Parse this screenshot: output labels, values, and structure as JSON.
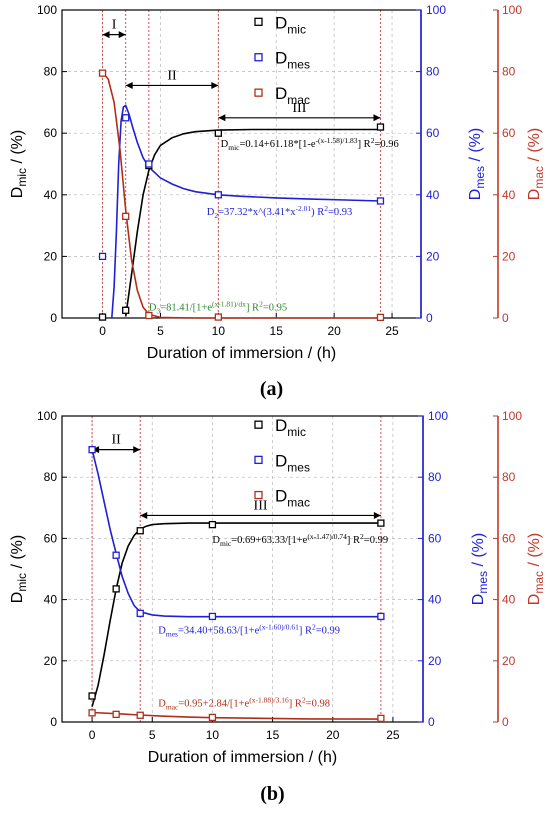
{
  "colors": {
    "mic": "#000000",
    "mes": "#1f1fd6",
    "mac": "#b02f1a",
    "mac_axis": "#c0392b",
    "mes_axis": "#1f1fd6",
    "eq_mac_a": "#2e8b2e",
    "grid": "#b8b8b8",
    "vline": "#d05050"
  },
  "labels": {
    "xlabel": "Duration of immersion / (h)",
    "y_mic": {
      "main": "D",
      "sub": "mic",
      "unit": " / (%)"
    },
    "y_mes": {
      "main": "D",
      "sub": "mes",
      "unit": " / (%)"
    },
    "y_mac": {
      "main": "D",
      "sub": "mac",
      "unit": " / (%)"
    },
    "legend": [
      {
        "key": "mic",
        "main": "D",
        "sub": "mic"
      },
      {
        "key": "mes",
        "main": "D",
        "sub": "mes"
      },
      {
        "key": "mac",
        "main": "D",
        "sub": "mac"
      }
    ],
    "y_ticks": [
      "0",
      "20",
      "40",
      "60",
      "80",
      "100"
    ],
    "x_ticks": [
      "0",
      "5",
      "10",
      "15",
      "20",
      "25"
    ]
  },
  "chart_data": [
    {
      "panel_label": "(a)",
      "type": "scatter",
      "x_ticks": [
        0,
        5,
        10,
        15,
        20,
        25
      ],
      "xlim": [
        -3.5,
        27.5
      ],
      "ylim": [
        0,
        100
      ],
      "vlines": [
        0,
        2,
        4,
        10,
        24
      ],
      "zones": [
        {
          "label": "I",
          "x_from": 0,
          "x_to": 2,
          "y": 92
        },
        {
          "label": "II",
          "x_from": 2,
          "x_to": 10,
          "y": 75.5
        },
        {
          "label": "III",
          "x_from": 10,
          "x_to": 24,
          "y": 65
        }
      ],
      "series": [
        {
          "name": "Dmic",
          "key": "mic",
          "x": [
            0,
            2,
            4,
            10,
            24
          ],
          "y": [
            0.3,
            2.5,
            49.5,
            60,
            62
          ]
        },
        {
          "name": "Dmes",
          "key": "mes",
          "x": [
            0,
            2,
            4,
            10,
            24
          ],
          "y": [
            20,
            65,
            50,
            40,
            38
          ]
        },
        {
          "name": "Dmac",
          "key": "mac",
          "x": [
            0,
            2,
            4,
            10,
            24
          ],
          "y": [
            79.5,
            33,
            0.8,
            0.3,
            0.2
          ]
        }
      ],
      "fits": [
        {
          "key": "mic",
          "x": [
            2,
            2.5,
            3,
            3.5,
            4,
            4.5,
            5,
            6,
            7,
            8,
            10,
            13,
            16,
            20,
            24
          ],
          "y": [
            0.5,
            14,
            28,
            40,
            48,
            53,
            56,
            58.5,
            59.8,
            60.5,
            61,
            61.2,
            61.2,
            61.2,
            61.2
          ]
        },
        {
          "key": "mes",
          "x": [
            0.8,
            1,
            1.2,
            1.4,
            1.6,
            1.8,
            2,
            2.3,
            2.6,
            3,
            3.5,
            4,
            5,
            6,
            7,
            8,
            10,
            12,
            15,
            18,
            21,
            24
          ],
          "y": [
            0,
            10,
            28,
            50,
            64,
            68.5,
            69,
            66,
            62,
            57,
            52,
            49,
            45.5,
            43.5,
            42,
            41,
            40,
            39.5,
            39,
            38.6,
            38.3,
            38
          ]
        },
        {
          "key": "mac",
          "x": [
            0,
            0.5,
            1,
            1.5,
            2,
            2.5,
            3,
            3.5,
            4,
            5,
            6,
            8,
            10,
            14,
            18,
            24
          ],
          "y": [
            79.8,
            77.5,
            70,
            55,
            35,
            19,
            9,
            3.5,
            1.2,
            0.2,
            0.1,
            0,
            0,
            0,
            0,
            0
          ]
        }
      ],
      "legend_y": [
        96,
        84.5,
        73
      ],
      "equations": [
        {
          "key": "mic",
          "x": 10.2,
          "y": 55.5,
          "parts": [
            [
              "D",
              "n"
            ],
            [
              "mic",
              "sub"
            ],
            [
              "=0.14+61.18*[1-e",
              "n"
            ],
            [
              "-(x-1.58)/1.83",
              "sup"
            ],
            [
              "]    R",
              "n"
            ],
            [
              "2",
              "sup"
            ],
            [
              "=0.96",
              "n"
            ]
          ]
        },
        {
          "key": "mes",
          "x": 9,
          "y": 33.5,
          "parts": [
            [
              "D",
              "n"
            ],
            [
              "2",
              "sub"
            ],
            [
              "=37.32*x^(3.41*x",
              "n"
            ],
            [
              "-2.01",
              "sup"
            ],
            [
              ")    R",
              "n"
            ],
            [
              "2",
              "sup"
            ],
            [
              "=0.93",
              "n"
            ]
          ]
        },
        {
          "key": "eq_mac_a",
          "x": 4,
          "y": 2.5,
          "parts": [
            [
              "D",
              "n"
            ],
            [
              "3",
              "sub"
            ],
            [
              "=81.41/[1+e",
              "n"
            ],
            [
              "(x-1.81)/dx",
              "sup"
            ],
            [
              "]       R",
              "n"
            ],
            [
              "2",
              "sup"
            ],
            [
              "=0.95",
              "n"
            ]
          ]
        }
      ]
    },
    {
      "panel_label": "(b)",
      "type": "scatter",
      "x_ticks": [
        0,
        5,
        10,
        15,
        20,
        25
      ],
      "xlim": [
        -2.5,
        27.5
      ],
      "ylim": [
        0,
        100
      ],
      "vlines": [
        0,
        4,
        24
      ],
      "zones": [
        {
          "label": "II",
          "x_from": 0,
          "x_to": 4,
          "y": 89
        },
        {
          "label": "III",
          "x_from": 4,
          "x_to": 24,
          "y": 67.5
        }
      ],
      "series": [
        {
          "name": "Dmic",
          "key": "mic",
          "x": [
            0,
            2,
            4,
            10,
            24
          ],
          "y": [
            8.5,
            43.5,
            62.5,
            64.5,
            65
          ]
        },
        {
          "name": "Dmes",
          "key": "mes",
          "x": [
            0,
            2,
            4,
            10,
            24
          ],
          "y": [
            89,
            54.5,
            35.5,
            34.5,
            34.5
          ]
        },
        {
          "name": "Dmac",
          "key": "mac",
          "x": [
            0,
            2,
            4,
            10,
            24
          ],
          "y": [
            3,
            2.5,
            2.2,
            1.5,
            1.2
          ]
        }
      ],
      "fits": [
        {
          "key": "mic",
          "x": [
            0,
            0.5,
            1,
            1.5,
            2,
            2.5,
            3,
            3.5,
            4,
            4.5,
            5,
            6,
            8,
            10,
            14,
            18,
            24
          ],
          "y": [
            5,
            12,
            22,
            33,
            43.5,
            52,
            57.5,
            61,
            63,
            64,
            64.5,
            64.8,
            65,
            65,
            65,
            65,
            65
          ]
        },
        {
          "key": "mes",
          "x": [
            0,
            0.5,
            1,
            1.5,
            2,
            2.5,
            3,
            3.5,
            4,
            5,
            6,
            8,
            10,
            14,
            18,
            24
          ],
          "y": [
            89,
            81,
            72,
            63,
            55,
            47.5,
            42,
            38,
            36,
            35,
            34.6,
            34.4,
            34.4,
            34.4,
            34.4,
            34.4
          ]
        },
        {
          "key": "mac",
          "x": [
            0,
            2,
            4,
            6,
            8,
            10,
            14,
            18,
            24
          ],
          "y": [
            3.1,
            2.7,
            2.3,
            1.9,
            1.6,
            1.4,
            1.2,
            1.0,
            0.95
          ]
        }
      ],
      "legend_y": [
        97,
        85.5,
        74
      ],
      "equations": [
        {
          "key": "mic",
          "x": 10,
          "y": 58.5,
          "parts": [
            [
              "D",
              "n"
            ],
            [
              "mic",
              "sub"
            ],
            [
              "=0.69+63.33/[1+e",
              "n"
            ],
            [
              "(x-1.47)/0.74",
              "sup"
            ],
            [
              "]    R",
              "n"
            ],
            [
              "2",
              "sup"
            ],
            [
              "=0.99",
              "n"
            ]
          ]
        },
        {
          "key": "mes",
          "x": 5.5,
          "y": 29,
          "parts": [
            [
              "D",
              "n"
            ],
            [
              "mes",
              "sub"
            ],
            [
              "=34.40+58.63/[1+e",
              "n"
            ],
            [
              "(x-1.60)/0.61",
              "sup"
            ],
            [
              "]    R",
              "n"
            ],
            [
              "2",
              "sup"
            ],
            [
              "=0.99",
              "n"
            ]
          ]
        },
        {
          "key": "mac",
          "x": 5.5,
          "y": 5,
          "parts": [
            [
              "D",
              "n"
            ],
            [
              "mac",
              "sub"
            ],
            [
              "=0.95+2.84/[1+e",
              "n"
            ],
            [
              "(x-1.88)/3.16",
              "sup"
            ],
            [
              "]    R",
              "n"
            ],
            [
              "2",
              "sup"
            ],
            [
              "=0.98",
              "n"
            ]
          ]
        }
      ]
    }
  ]
}
